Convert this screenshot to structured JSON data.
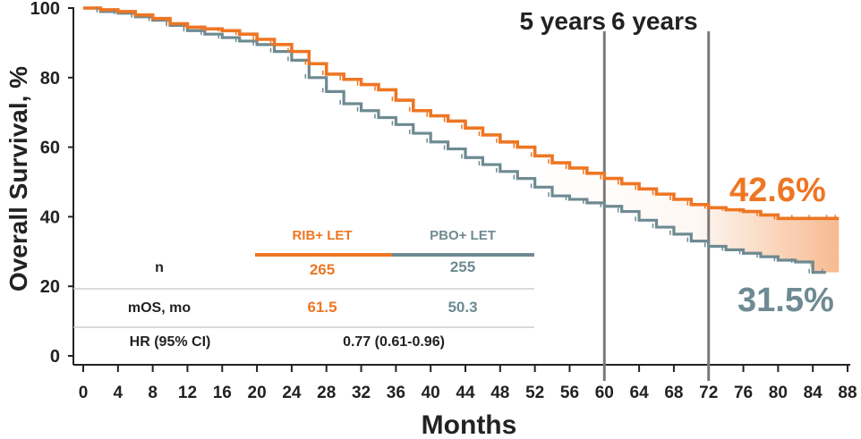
{
  "chart_data": {
    "type": "line",
    "title": "",
    "xlabel": "Months",
    "ylabel": "Overall Survival, %",
    "xlim": [
      0,
      88
    ],
    "ylim": [
      0,
      100
    ],
    "xticks": [
      0,
      4,
      8,
      12,
      16,
      20,
      24,
      28,
      32,
      36,
      40,
      44,
      48,
      52,
      56,
      60,
      64,
      68,
      72,
      76,
      80,
      84,
      88
    ],
    "yticks": [
      0,
      20,
      40,
      60,
      80,
      100
    ],
    "grid": false,
    "colors": {
      "rib": "#EE7623",
      "pbo": "#6E8A92",
      "ref": "#7A7A7A",
      "axis": "#222222"
    },
    "series": [
      {
        "name": "RIB+ LET",
        "x": [
          0,
          2,
          4,
          6,
          8,
          10,
          12,
          14,
          16,
          18,
          20,
          22,
          24,
          26,
          28,
          30,
          32,
          34,
          36,
          38,
          40,
          42,
          44,
          46,
          48,
          50,
          52,
          54,
          56,
          58,
          60,
          62,
          64,
          66,
          68,
          70,
          72,
          74,
          76,
          78,
          80,
          82,
          84,
          86,
          87
        ],
        "values": [
          100,
          99.5,
          99,
          98,
          97,
          95.5,
          94.5,
          94,
          93.5,
          92.5,
          91,
          89.5,
          87.5,
          84,
          81,
          79.5,
          78,
          76.5,
          73.5,
          70.5,
          69,
          67.5,
          65.5,
          63.5,
          61.5,
          60,
          57.5,
          55.5,
          54,
          52.5,
          51,
          49.5,
          48,
          46.5,
          45,
          43.5,
          42.6,
          42,
          41.5,
          40.5,
          39.5,
          39.5,
          39.5,
          39.5,
          39.5
        ]
      },
      {
        "name": "PBO+ LET",
        "x": [
          0,
          2,
          4,
          6,
          8,
          10,
          12,
          14,
          16,
          18,
          20,
          22,
          24,
          26,
          28,
          30,
          32,
          34,
          36,
          38,
          40,
          42,
          44,
          46,
          48,
          50,
          52,
          54,
          56,
          58,
          60,
          62,
          64,
          66,
          68,
          70,
          72,
          74,
          76,
          78,
          80,
          82,
          84,
          85.5
        ],
        "values": [
          100,
          99,
          98.5,
          97.5,
          96.5,
          95,
          93.5,
          92.5,
          91.5,
          90.5,
          89.5,
          87.5,
          85,
          80,
          76,
          72.5,
          70.5,
          68.5,
          66.5,
          64,
          61.5,
          59.5,
          57,
          55,
          53,
          51,
          48.5,
          46,
          45,
          44,
          43,
          41.5,
          39,
          37,
          35,
          33,
          31.5,
          30.5,
          29.5,
          28.5,
          27.5,
          27,
          24,
          24
        ]
      }
    ],
    "reference_lines": [
      {
        "x": 60,
        "label": "5 years"
      },
      {
        "x": 72,
        "label": "6 years"
      }
    ],
    "annotations": {
      "rib_pct": "42.6%",
      "pbo_pct": "31.5%"
    },
    "table": {
      "header": [
        "RIB+ LET",
        "PBO+ LET"
      ],
      "rows": [
        {
          "label": "n",
          "rib": "265",
          "pbo": "255"
        },
        {
          "label": "mOS, mo",
          "rib": "61.5",
          "pbo": "50.3"
        },
        {
          "label": "HR (95% CI)",
          "value": "0.77 (0.61-0.96)"
        }
      ]
    }
  }
}
